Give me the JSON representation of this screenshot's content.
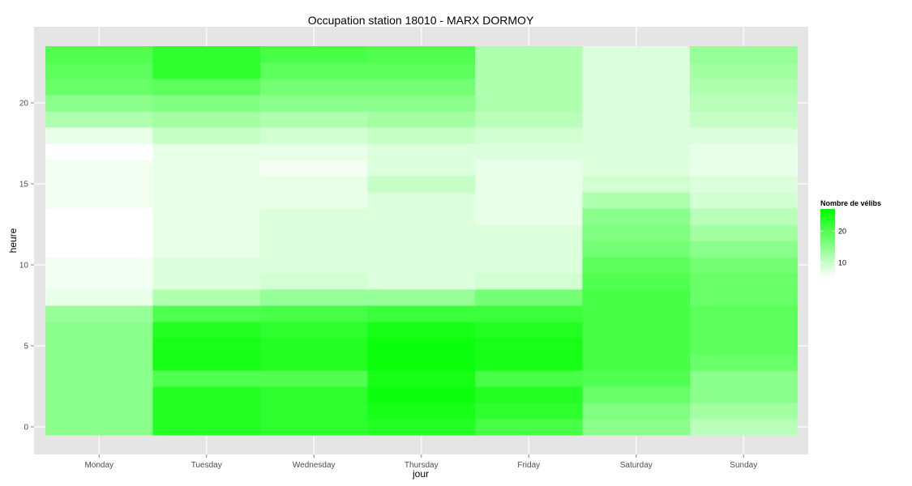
{
  "chart_data": {
    "type": "heatmap",
    "title": "Occupation station 18010 - MARX DORMOY",
    "xlabel": "jour",
    "ylabel": "heure",
    "categories": [
      "Monday",
      "Tuesday",
      "Wednesday",
      "Thursday",
      "Friday",
      "Saturday",
      "Sunday"
    ],
    "y_ticks": [
      0,
      5,
      10,
      15,
      20
    ],
    "y_range": [
      -0.5,
      23.5
    ],
    "legend": {
      "title": "Nombre de vélibs",
      "ticks": [
        10,
        20
      ],
      "min": 5,
      "max": 27,
      "low_color": "#ffffff",
      "high_color": "#00ff00"
    },
    "colors": {
      "panel_bg": "#e5e5e5",
      "grid_major": "#ffffff"
    },
    "hours": [
      0,
      1,
      2,
      3,
      4,
      5,
      6,
      7,
      8,
      9,
      10,
      11,
      12,
      13,
      14,
      15,
      16,
      17,
      18,
      19,
      20,
      21,
      22,
      23
    ],
    "values": {
      "Monday": [
        15,
        15,
        15,
        15,
        15,
        15,
        15,
        14,
        7,
        6,
        6,
        5,
        5,
        5,
        6,
        6,
        6,
        5,
        7,
        12,
        15,
        18,
        19,
        20
      ],
      "Tuesday": [
        24,
        24,
        24,
        20,
        25,
        25,
        24,
        20,
        12,
        8,
        8,
        7,
        7,
        7,
        7,
        7,
        7,
        7,
        10,
        13,
        16,
        19,
        23,
        23
      ],
      "Wednesday": [
        23,
        23,
        23,
        20,
        24,
        24,
        23,
        21,
        14,
        9,
        8,
        8,
        8,
        8,
        7,
        7,
        6,
        7,
        9,
        12,
        15,
        17,
        19,
        21
      ],
      "Thursday": [
        24,
        25,
        26,
        25,
        26,
        26,
        25,
        22,
        14,
        8,
        8,
        8,
        8,
        8,
        8,
        10,
        8,
        8,
        10,
        13,
        15,
        17,
        19,
        20
      ],
      "Friday": [
        21,
        23,
        24,
        21,
        25,
        25,
        24,
        22,
        17,
        9,
        8,
        8,
        8,
        7,
        7,
        7,
        7,
        8,
        9,
        11,
        12,
        12,
        12,
        12
      ],
      "Saturday": [
        15,
        16,
        18,
        20,
        21,
        21,
        21,
        21,
        21,
        20,
        19,
        17,
        16,
        15,
        12,
        9,
        8,
        8,
        8,
        8,
        8,
        8,
        8,
        8
      ],
      "Sunday": [
        11,
        13,
        15,
        15,
        18,
        19,
        19,
        19,
        18,
        18,
        17,
        15,
        13,
        11,
        9,
        8,
        7,
        7,
        8,
        10,
        11,
        12,
        13,
        14
      ]
    }
  }
}
